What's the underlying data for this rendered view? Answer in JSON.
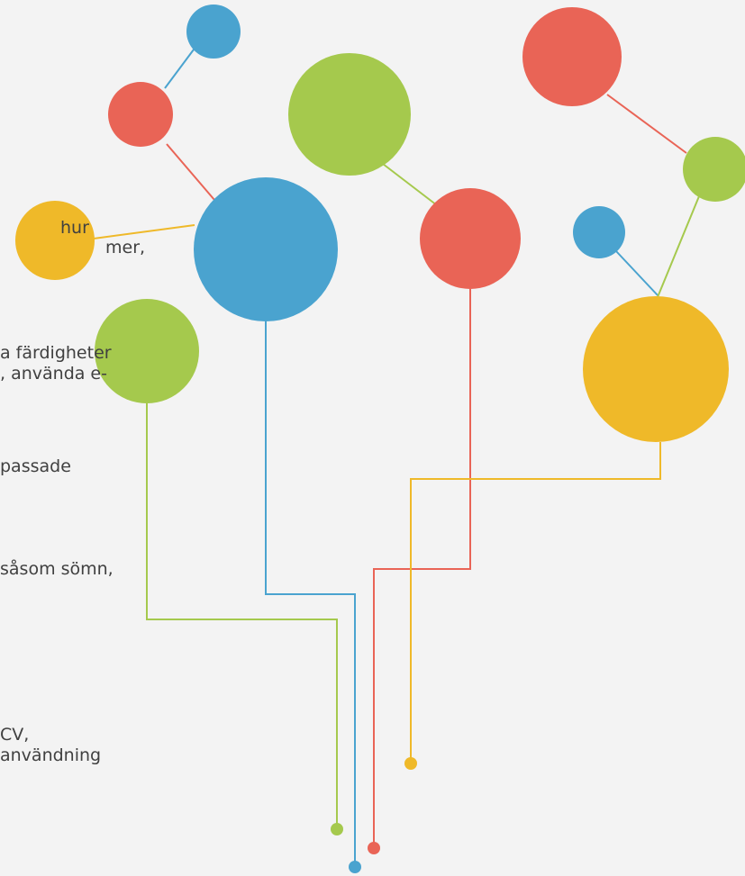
{
  "text_lines": [
    "hur",
    "mer,",
    "a färdigheter",
    ", använda e-",
    "passade",
    "såsom sömn,",
    "CV,",
    "användning"
  ]
}
